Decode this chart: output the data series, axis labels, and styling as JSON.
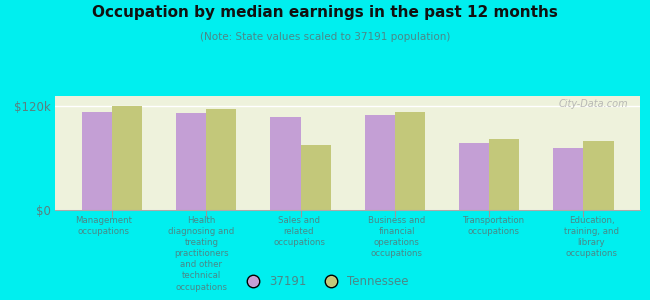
{
  "title": "Occupation by median earnings in the past 12 months",
  "subtitle": "(Note: State values scaled to 37191 population)",
  "background_color": "#00EFEF",
  "plot_background_color": "#EEF2DC",
  "categories": [
    "Management\noccupations",
    "Health\ndiagnosing and\ntreating\npractitioners\nand other\ntechnical\noccupations",
    "Sales and\nrelated\noccupations",
    "Business and\nfinancial\noperations\noccupations",
    "Transportation\noccupations",
    "Education,\ntraining, and\nlibrary\noccupations"
  ],
  "values_37191": [
    113000,
    112000,
    108000,
    110000,
    78000,
    72000
  ],
  "values_tennessee": [
    120000,
    117000,
    75000,
    113000,
    82000,
    80000
  ],
  "color_37191": "#C49FD5",
  "color_tennessee": "#C3C87A",
  "ylabel_ticks": [
    "$0",
    "$120k"
  ],
  "ytick_vals": [
    0,
    120000
  ],
  "ylim": [
    0,
    132000
  ],
  "legend_label_37191": "37191",
  "legend_label_tn": "Tennessee",
  "watermark": "City-Data.com",
  "title_color": "#111111",
  "axis_label_color": "#4a8888",
  "tick_label_color": "#5a8080",
  "grid_color": "#ffffff",
  "bar_width": 0.32
}
